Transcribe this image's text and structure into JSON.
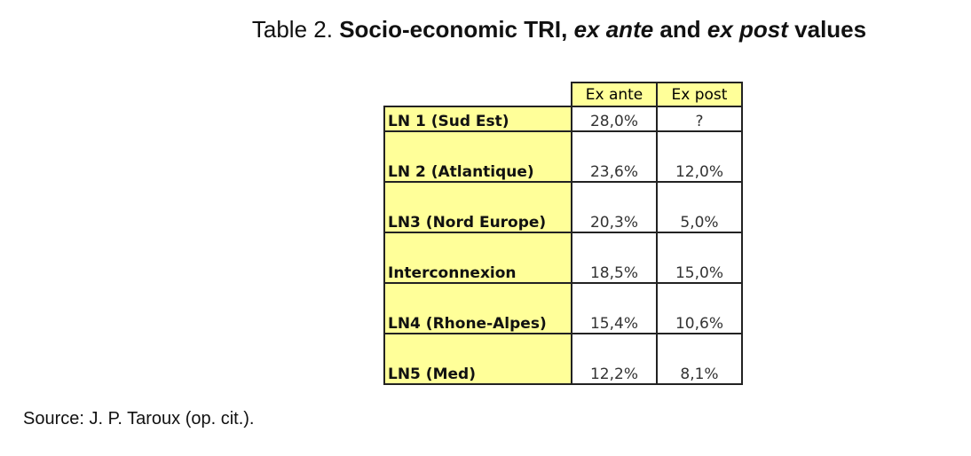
{
  "title": {
    "prefix": "Table 2.",
    "bold": "Socio-economic TRI,",
    "italic1": "ex ante",
    "mid": "and",
    "italic2": "ex post",
    "suffix": "values"
  },
  "table": {
    "header": [
      "Ex ante",
      "Ex post"
    ],
    "rows": [
      [
        "LN 1 (Sud Est)",
        "28,0%",
        "?"
      ],
      [
        "LN 2 (Atlantique)",
        "23,6%",
        "12,0%"
      ],
      [
        "LN3 (Nord Europe)",
        "20,3%",
        "5,0%"
      ],
      [
        "Interconnexion",
        "18,5%",
        "15,0%"
      ],
      [
        "LN4 (Rhone-Alpes)",
        "15,4%",
        "10,6%"
      ],
      [
        "LN5 (Med)",
        "12,2%",
        "8,1%"
      ]
    ]
  },
  "source": "Source: J. P. Taroux (op. cit.)."
}
